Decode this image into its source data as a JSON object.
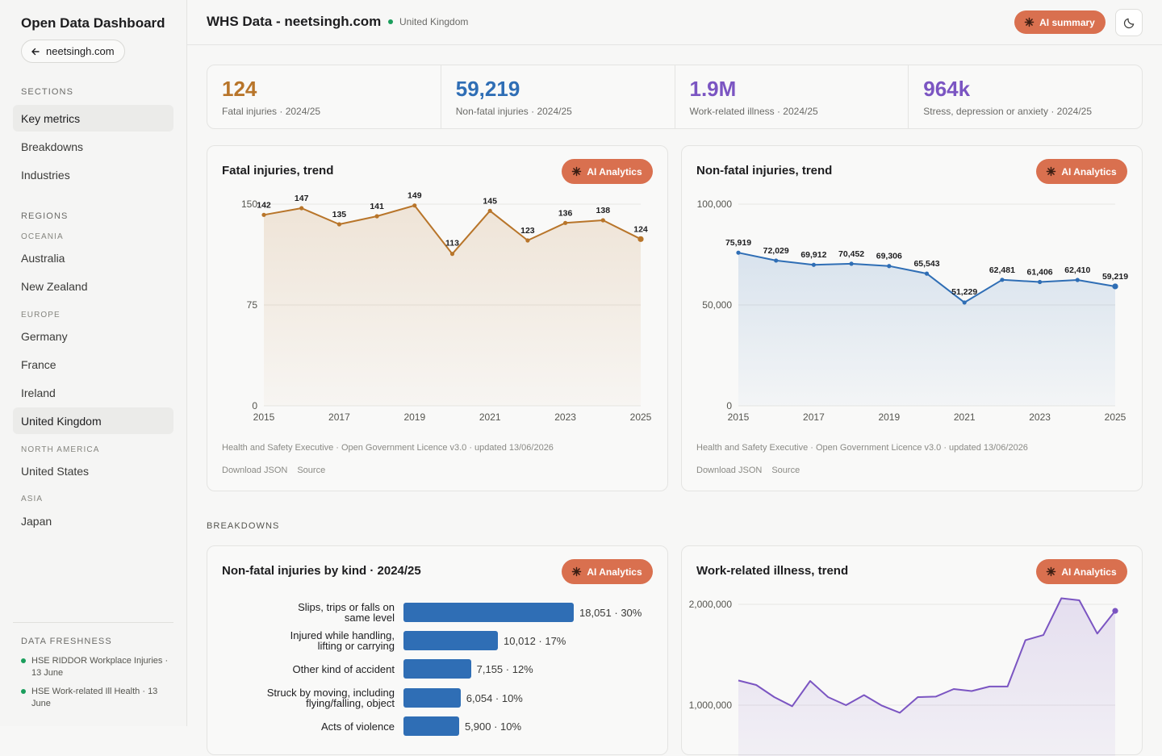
{
  "sidebar": {
    "title": "Open Data Dashboard",
    "back_label": "neetsingh.com",
    "sections_label": "SECTIONS",
    "sections": [
      "Key metrics",
      "Breakdowns",
      "Industries"
    ],
    "regions_label": "REGIONS",
    "groups": [
      {
        "name": "OCEANIA",
        "items": [
          "Australia",
          "New Zealand"
        ]
      },
      {
        "name": "EUROPE",
        "items": [
          "Germany",
          "France",
          "Ireland",
          "United Kingdom"
        ]
      },
      {
        "name": "NORTH AMERICA",
        "items": [
          "United States"
        ]
      },
      {
        "name": "ASIA",
        "items": [
          "Japan"
        ]
      }
    ],
    "freshness_label": "DATA FRESHNESS",
    "freshness": [
      "HSE RIDDOR Workplace Injuries · 13 June",
      "HSE Work-related Ill Health · 13 June"
    ]
  },
  "header": {
    "title": "WHS Data - neetsingh.com",
    "country": "United Kingdom",
    "ai_summary": "AI summary"
  },
  "kpis": [
    {
      "value": "124",
      "label": "Fatal injuries · 2024/25",
      "color": "#b8752a"
    },
    {
      "value": "59,219",
      "label": "Non-fatal injuries · 2024/25",
      "color": "#2f6eb5"
    },
    {
      "value": "1.9M",
      "label": "Work-related illness · 2024/25",
      "color": "#7b55c2"
    },
    {
      "value": "964k",
      "label": "Stress, depression or anxiety · 2024/25",
      "color": "#7b55c2"
    }
  ],
  "ai_button_label": "AI Analytics",
  "footer_source": "Health and Safety Executive · Open Government Licence v3.0 · updated 13/06/2026",
  "footer_links": [
    "Download JSON",
    "Source"
  ],
  "breakdowns_label": "BREAKDOWNS",
  "chart_data": [
    {
      "type": "line",
      "title": "Fatal injuries, trend",
      "x": [
        2015,
        2016,
        2017,
        2018,
        2019,
        2020,
        2021,
        2022,
        2023,
        2024,
        2025
      ],
      "values": [
        142,
        147,
        135,
        141,
        149,
        113,
        145,
        123,
        136,
        138,
        124
      ],
      "labels": [
        "142",
        "147",
        "135",
        "141",
        "149",
        "113",
        "145",
        "123",
        "136",
        "138",
        "124"
      ],
      "x_ticks": [
        "2015",
        "2017",
        "2019",
        "2021",
        "2023",
        "2025"
      ],
      "y_ticks": [
        "150",
        "75",
        "0"
      ],
      "ylim": [
        0,
        150
      ],
      "color": "#b8752a",
      "grid": true
    },
    {
      "type": "line",
      "title": "Non-fatal injuries, trend",
      "x": [
        2015,
        2016,
        2017,
        2018,
        2019,
        2020,
        2021,
        2022,
        2023,
        2024,
        2025
      ],
      "values": [
        75919,
        72029,
        69912,
        70452,
        69306,
        65543,
        51229,
        62481,
        61406,
        62410,
        59219
      ],
      "labels": [
        "75,919",
        "72,029",
        "69,912",
        "70,452",
        "69,306",
        "65,543",
        "51,229",
        "62,481",
        "61,406",
        "62,410",
        "59,219"
      ],
      "x_ticks": [
        "2015",
        "2017",
        "2019",
        "2021",
        "2023",
        "2025"
      ],
      "y_ticks": [
        "100,000",
        "50,000",
        "0"
      ],
      "ylim": [
        0,
        100000
      ],
      "color": "#2f6eb5",
      "grid": true
    },
    {
      "type": "bar",
      "title": "Non-fatal injuries by kind · 2024/25",
      "categories": [
        [
          "Slips, trips or falls on",
          "same level"
        ],
        [
          "Injured while handling,",
          "lifting or carrying"
        ],
        [
          "Other kind of accident"
        ],
        [
          "Struck by moving, including",
          "flying/falling, object"
        ],
        [
          "Acts of violence"
        ]
      ],
      "values": [
        18051,
        10012,
        7155,
        6054,
        5900
      ],
      "labels": [
        "18,051 · 30%",
        "10,012 · 17%",
        "7,155 · 12%",
        "6,054 · 10%",
        "5,900 · 10%"
      ],
      "color": "#2f6eb5"
    },
    {
      "type": "area",
      "title": "Work-related illness, trend",
      "y_ticks": [
        "2,000,000",
        "1,000,000"
      ],
      "ylim": [
        0,
        2000000
      ],
      "values": [
        1245000,
        1200000,
        1080000,
        990000,
        1240000,
        1080000,
        1000000,
        1100000,
        995000,
        925000,
        1080000,
        1085000,
        1160000,
        1140000,
        1185000,
        1185000,
        1645000,
        1695000,
        2060000,
        2040000,
        1710000,
        1935000
      ],
      "color": "#7b55c2",
      "grid": true
    }
  ]
}
